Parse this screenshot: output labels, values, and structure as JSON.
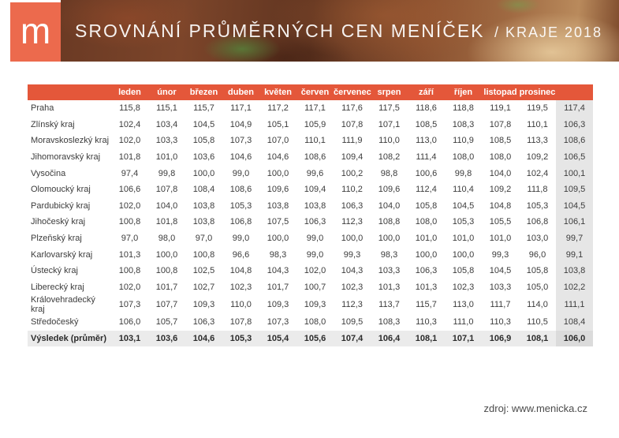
{
  "header": {
    "logo_letter": "m",
    "title_main": "SROVNÁNÍ PRŮMĚRNÝCH CEN MENÍČEK",
    "title_suffix": "/ KRAJE 2018"
  },
  "chart_data": {
    "type": "table",
    "title": "SROVNÁNÍ PRŮMĚRNÝCH CEN MENÍČEK / KRAJE 2018",
    "columns": [
      "leden",
      "únor",
      "březen",
      "duben",
      "květen",
      "červen",
      "červenec",
      "srpen",
      "září",
      "říjen",
      "listopad",
      "prosinec"
    ],
    "average_column_label": "",
    "number_format": "comma-decimal",
    "rows": [
      {
        "label": "Praha",
        "values": [
          115.8,
          115.1,
          115.7,
          117.1,
          117.2,
          117.1,
          117.6,
          117.5,
          118.6,
          118.8,
          119.1,
          119.5
        ],
        "average": 117.4
      },
      {
        "label": "Zlínský kraj",
        "values": [
          102.4,
          103.4,
          104.5,
          104.9,
          105.1,
          105.9,
          107.8,
          107.1,
          108.5,
          108.3,
          107.8,
          110.1
        ],
        "average": 106.3
      },
      {
        "label": "Moravskoslezký kraj",
        "values": [
          102.0,
          103.3,
          105.8,
          107.3,
          107.0,
          110.1,
          111.9,
          110.0,
          113.0,
          110.9,
          108.5,
          113.3
        ],
        "average": 108.6
      },
      {
        "label": "Jihomoravský kraj",
        "values": [
          101.8,
          101.0,
          103.6,
          104.6,
          104.6,
          108.6,
          109.4,
          108.2,
          111.4,
          108.0,
          108.0,
          109.2
        ],
        "average": 106.5
      },
      {
        "label": "Vysočina",
        "values": [
          97.4,
          99.8,
          100.0,
          99.0,
          100.0,
          99.6,
          100.2,
          98.8,
          100.6,
          99.8,
          104.0,
          102.4
        ],
        "average": 100.1
      },
      {
        "label": "Olomoucký kraj",
        "values": [
          106.6,
          107.8,
          108.4,
          108.6,
          109.6,
          109.4,
          110.2,
          109.6,
          112.4,
          110.4,
          109.2,
          111.8
        ],
        "average": 109.5
      },
      {
        "label": "Pardubický kraj",
        "values": [
          102.0,
          104.0,
          103.8,
          105.3,
          103.8,
          103.8,
          106.3,
          104.0,
          105.8,
          104.5,
          104.8,
          105.3
        ],
        "average": 104.5
      },
      {
        "label": "Jihočeský kraj",
        "values": [
          100.8,
          101.8,
          103.8,
          106.8,
          107.5,
          106.3,
          112.3,
          108.8,
          108.0,
          105.3,
          105.5,
          106.8
        ],
        "average": 106.1
      },
      {
        "label": "Plzeňský kraj",
        "values": [
          97.0,
          98.0,
          97.0,
          99.0,
          100.0,
          99.0,
          100.0,
          100.0,
          101.0,
          101.0,
          101.0,
          103.0
        ],
        "average": 99.7
      },
      {
        "label": "Karlovarský kraj",
        "values": [
          101.3,
          100.0,
          100.8,
          96.6,
          98.3,
          99.0,
          99.3,
          98.3,
          100.0,
          100.0,
          99.3,
          96.0
        ],
        "average": 99.1
      },
      {
        "label": "Ústecký kraj",
        "values": [
          100.8,
          100.8,
          102.5,
          104.8,
          104.3,
          102.0,
          104.3,
          103.3,
          106.3,
          105.8,
          104.5,
          105.8
        ],
        "average": 103.8
      },
      {
        "label": "Liberecký kraj",
        "values": [
          102.0,
          101.7,
          102.7,
          102.3,
          101.7,
          100.7,
          102.3,
          101.3,
          101.3,
          102.3,
          103.3,
          105.0
        ],
        "average": 102.2
      },
      {
        "label": "Královehradecký kraj",
        "values": [
          107.3,
          107.7,
          109.3,
          110.0,
          109.3,
          109.3,
          112.3,
          113.7,
          115.7,
          113.0,
          111.7,
          114.0
        ],
        "average": 111.1
      },
      {
        "label": "Středočeský",
        "values": [
          106.0,
          105.7,
          106.3,
          107.8,
          107.3,
          108.0,
          109.5,
          108.3,
          110.3,
          111.0,
          110.3,
          110.5
        ],
        "average": 108.4
      }
    ],
    "total_row": {
      "label": "Výsledek (průměr)",
      "values": [
        103.1,
        103.6,
        104.6,
        105.3,
        105.4,
        105.6,
        107.4,
        106.4,
        108.1,
        107.1,
        106.9,
        108.1
      ],
      "average": 106.0
    }
  },
  "footer": {
    "source_text": "zdroj: www.menicka.cz"
  },
  "colors": {
    "accent_orange": "#E4573A",
    "logo_orange": "#EC6A4D",
    "average_column_bg": "#E6E6E6",
    "total_row_bg": "#EBEBEB",
    "total_average_bg": "#DBDBDB",
    "text_dark": "#3C3C3C"
  }
}
